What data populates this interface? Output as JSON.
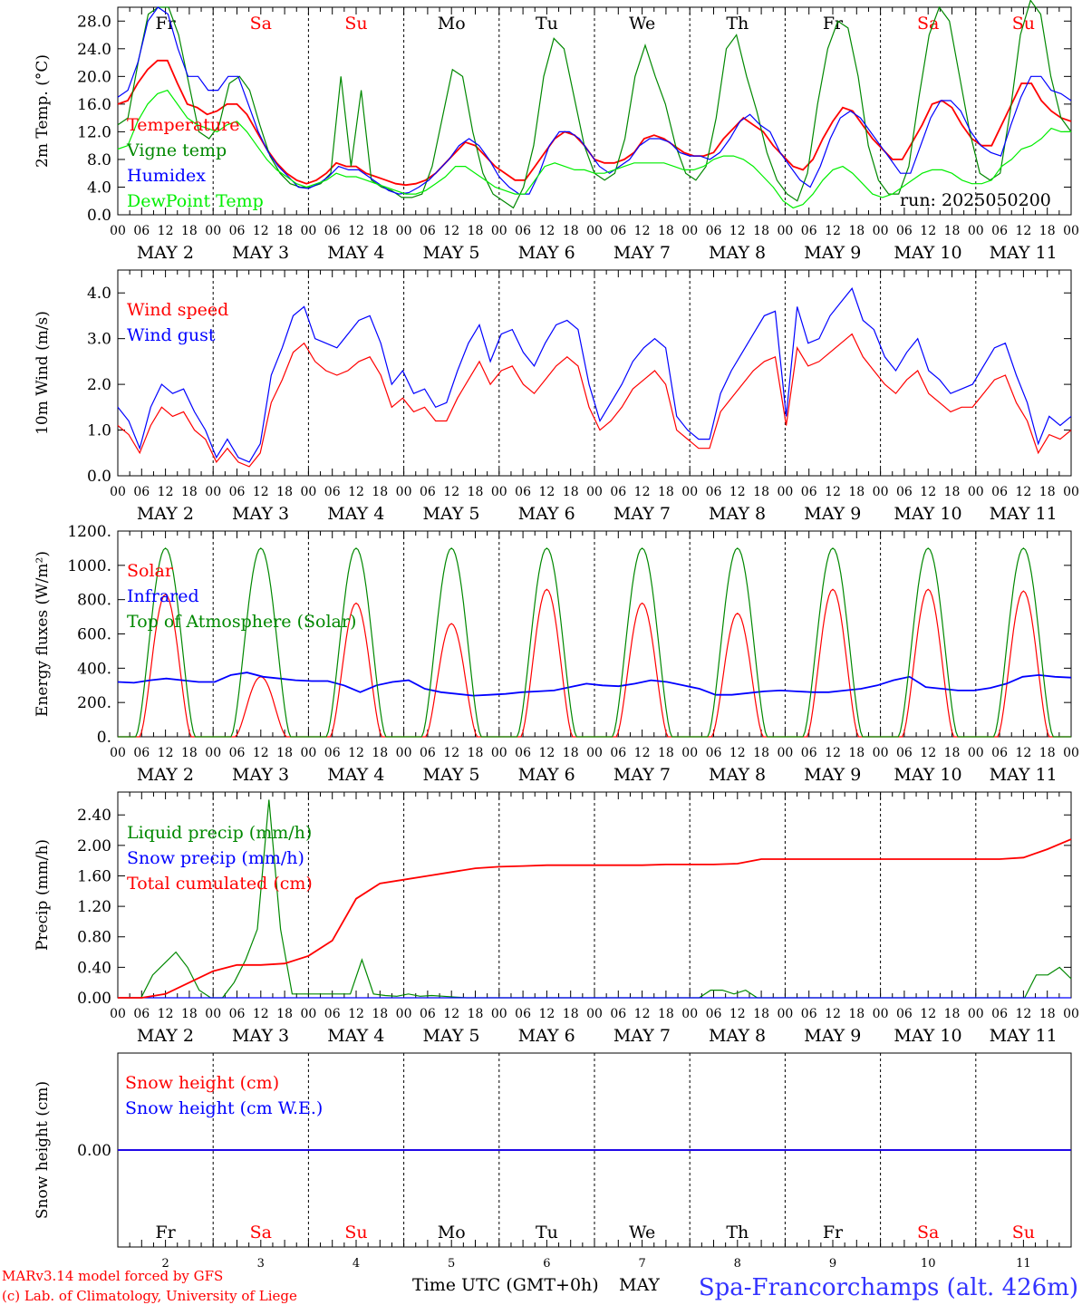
{
  "header": {
    "run": "run: 2025050200"
  },
  "footer": {
    "model": "MARv3.14 model forced by GFS",
    "credit": "(c) Lab. of Climatology, University of Liege",
    "axis_title": "Time UTC (GMT+0h)",
    "month": "MAY",
    "station": "Spa-Francorchamps (alt. 426m)"
  },
  "days": [
    "Fr",
    "Sa",
    "Su",
    "Mo",
    "Tu",
    "We",
    "Th",
    "Fr",
    "Sa",
    "Su"
  ],
  "weekend_flags": [
    false,
    true,
    true,
    false,
    false,
    false,
    false,
    false,
    true,
    true
  ],
  "date_labels": [
    "MAY  2",
    "MAY  3",
    "MAY  4",
    "MAY  5",
    "MAY  6",
    "MAY  7",
    "MAY  8",
    "MAY  9",
    "MAY 10",
    "MAY 11"
  ],
  "day_numbers": [
    "2",
    "3",
    "4",
    "5",
    "6",
    "7",
    "8",
    "9",
    "10",
    "11"
  ],
  "hour_ticks": [
    "00",
    "06",
    "12",
    "18"
  ],
  "hour_tick_last": "00",
  "colors": {
    "red": "#ff0000",
    "blue": "#0000ff",
    "green": "#008800",
    "lightgreen": "#00ee00",
    "black": "#000000"
  },
  "chart_data": [
    {
      "type": "line",
      "ylabel": "2m Temp. (°C)",
      "ylim": [
        0,
        30
      ],
      "yticks": [
        "0.0",
        "4.0",
        "8.0",
        "12.0",
        "16.0",
        "20.0",
        "24.0",
        "28.0"
      ],
      "ytick_values": [
        0,
        4,
        8,
        12,
        16,
        20,
        24,
        28
      ],
      "x_hours_step": 3,
      "series": [
        {
          "name": "Temperature",
          "color": "#ff0000",
          "values": [
            16,
            16.5,
            19,
            21,
            22.3,
            22.3,
            19,
            16,
            15.5,
            14.5,
            15,
            16,
            16,
            14.5,
            12,
            9.5,
            7.5,
            6,
            5,
            4.5,
            5,
            6,
            7.5,
            7,
            7,
            6,
            5.5,
            5,
            4.5,
            4.3,
            4.5,
            5,
            6,
            7.5,
            9,
            10.5,
            10,
            8.5,
            7,
            6,
            5,
            5,
            7,
            9,
            11,
            12,
            11.5,
            10,
            8,
            7.5,
            7.5,
            8,
            9,
            11,
            11.5,
            11,
            10,
            9,
            8.5,
            8.5,
            9,
            11,
            12.5,
            14,
            13,
            12,
            10,
            8.5,
            7,
            6.5,
            8,
            11,
            13.5,
            15.5,
            15,
            13,
            11,
            9.5,
            8,
            8,
            10.5,
            13,
            16,
            16.5,
            15.5,
            13,
            11,
            10,
            10,
            13,
            16,
            19,
            19,
            16.5,
            15,
            14,
            13.5
          ]
        },
        {
          "name": "Vigne temp",
          "color": "#008800",
          "values": [
            13,
            14,
            22,
            29,
            30,
            30,
            26,
            19,
            12,
            11,
            13,
            19,
            20,
            18,
            13,
            8.5,
            6,
            4.5,
            4,
            4,
            4.5,
            6,
            20,
            7,
            18,
            5,
            4,
            3.5,
            2.5,
            2.5,
            3,
            7,
            14,
            21,
            20,
            12,
            6,
            3,
            2,
            1,
            4,
            10,
            20,
            25.5,
            24,
            17,
            10,
            6,
            5,
            6,
            11,
            20,
            24.5,
            20,
            16,
            10,
            6,
            5,
            7,
            14,
            24,
            26,
            20,
            15,
            9,
            5,
            3,
            2,
            6,
            16,
            24,
            28,
            27,
            20,
            10,
            5,
            3,
            3,
            7,
            17,
            26,
            30,
            28,
            20,
            12,
            6,
            5,
            6,
            15,
            26,
            31,
            29,
            20,
            14,
            12
          ]
        },
        {
          "name": "Humidex",
          "color": "#0000ff",
          "values": [
            17,
            18,
            22,
            28,
            30,
            29,
            24,
            20,
            20,
            18,
            18,
            20,
            20,
            16,
            12,
            9,
            7,
            5.5,
            4,
            3.8,
            4.5,
            5.5,
            7,
            6.5,
            6.5,
            5.5,
            4.5,
            3.5,
            3,
            3.2,
            4,
            5,
            6.5,
            8,
            10,
            11,
            10,
            8,
            5.5,
            4,
            3,
            3,
            6,
            10,
            12,
            12,
            11,
            9,
            7,
            6,
            7,
            8,
            10,
            11,
            11,
            10.5,
            9,
            8.5,
            8.5,
            8,
            9,
            11,
            13.5,
            14.5,
            13,
            12,
            9,
            7,
            5,
            4,
            7,
            11,
            14,
            15,
            14,
            12,
            10,
            8,
            6,
            6,
            10,
            14,
            16.5,
            16.5,
            15,
            12,
            10,
            9,
            8.5,
            13,
            17,
            20,
            20,
            18,
            17.5,
            16.5
          ]
        },
        {
          "name": "DewPoint Temp",
          "color": "#00ee00",
          "values": [
            9.5,
            10,
            13.5,
            16,
            17.5,
            18,
            16,
            14,
            13,
            12.5,
            12,
            13,
            13.5,
            12,
            10,
            8,
            6.5,
            5.5,
            4.5,
            4,
            4.5,
            5,
            6,
            5.5,
            5.5,
            5,
            4.5,
            4,
            3.5,
            3,
            3,
            3.5,
            4.5,
            5.5,
            7,
            7,
            6,
            5,
            4,
            3.5,
            3,
            3,
            5,
            7,
            7.5,
            7,
            6.5,
            6.5,
            6,
            6,
            6.5,
            7,
            7.5,
            7.5,
            7.5,
            7.5,
            7,
            6.5,
            6.5,
            7,
            8,
            8.5,
            8.5,
            8,
            7,
            5.5,
            4,
            2,
            1,
            1.5,
            3,
            5,
            6.5,
            7,
            6,
            4.5,
            3,
            2.5,
            3,
            4,
            5,
            6,
            6.5,
            6.5,
            6,
            5,
            4.5,
            4.5,
            5,
            7,
            8,
            9.5,
            10,
            11,
            12.5,
            12,
            12
          ]
        }
      ],
      "legend": [
        "Temperature",
        "Vigne temp",
        "Humidex",
        "DewPoint Temp"
      ]
    },
    {
      "type": "line",
      "ylabel": "10m Wind (m/s)",
      "ylim": [
        0,
        4.5
      ],
      "yticks": [
        "0.0",
        "1.0",
        "2.0",
        "3.0",
        "4.0"
      ],
      "ytick_values": [
        0,
        1,
        2,
        3,
        4
      ],
      "x_hours_step": 3,
      "series": [
        {
          "name": "Wind speed",
          "color": "#ff0000",
          "values": [
            1.1,
            0.9,
            0.5,
            1.1,
            1.5,
            1.3,
            1.4,
            1,
            0.8,
            0.3,
            0.6,
            0.3,
            0.2,
            0.5,
            1.6,
            2.1,
            2.7,
            2.9,
            2.5,
            2.3,
            2.2,
            2.3,
            2.5,
            2.6,
            2.2,
            1.5,
            1.7,
            1.4,
            1.5,
            1.2,
            1.2,
            1.7,
            2.1,
            2.5,
            2,
            2.3,
            2.4,
            2,
            1.8,
            2.1,
            2.4,
            2.6,
            2.4,
            1.5,
            1,
            1.2,
            1.5,
            1.9,
            2.1,
            2.3,
            2,
            1,
            0.8,
            0.6,
            0.6,
            1.4,
            1.7,
            2,
            2.3,
            2.5,
            2.6,
            1.1,
            2.8,
            2.4,
            2.5,
            2.7,
            2.9,
            3.1,
            2.6,
            2.3,
            2,
            1.8,
            2.1,
            2.3,
            1.8,
            1.6,
            1.4,
            1.5,
            1.5,
            1.8,
            2.1,
            2.2,
            1.6,
            1.2,
            0.5,
            0.9,
            0.8,
            1
          ]
        },
        {
          "name": "Wind gust",
          "color": "#0000ff",
          "values": [
            1.5,
            1.2,
            0.6,
            1.5,
            2,
            1.8,
            1.9,
            1.4,
            1,
            0.4,
            0.8,
            0.4,
            0.3,
            0.7,
            2.2,
            2.8,
            3.5,
            3.7,
            3,
            2.9,
            2.8,
            3.1,
            3.4,
            3.5,
            2.9,
            2,
            2.3,
            1.8,
            1.9,
            1.5,
            1.6,
            2.3,
            2.9,
            3.3,
            2.5,
            3.1,
            3.2,
            2.7,
            2.4,
            2.9,
            3.3,
            3.4,
            3.2,
            2,
            1.2,
            1.6,
            2,
            2.5,
            2.8,
            3,
            2.8,
            1.3,
            1,
            0.8,
            0.8,
            1.8,
            2.3,
            2.7,
            3.1,
            3.5,
            3.6,
            1.3,
            3.7,
            2.9,
            3,
            3.5,
            3.8,
            4.1,
            3.4,
            3.2,
            2.6,
            2.3,
            2.7,
            3,
            2.3,
            2.1,
            1.8,
            1.9,
            2,
            2.4,
            2.8,
            2.9,
            2.2,
            1.6,
            0.7,
            1.3,
            1.1,
            1.3
          ]
        }
      ],
      "legend": [
        "Wind speed",
        "Wind gust"
      ]
    },
    {
      "type": "line",
      "ylabel": "Energy fluxes (W/m²)",
      "ylim": [
        0,
        1200
      ],
      "yticks": [
        "0.",
        "200.",
        "400.",
        "600.",
        "800.",
        "1000.",
        "1200."
      ],
      "ytick_values": [
        0,
        200,
        400,
        600,
        800,
        1000,
        1200
      ],
      "series": [
        {
          "name": "Solar",
          "color": "#ff0000",
          "peaks": [
            830,
            350,
            780,
            660,
            860,
            780,
            720,
            860,
            860,
            850
          ]
        },
        {
          "name": "Infrared",
          "color": "#0000ff",
          "values": [
            320,
            315,
            330,
            340,
            330,
            320,
            320,
            360,
            375,
            350,
            340,
            330,
            325,
            325,
            300,
            260,
            300,
            320,
            330,
            280,
            260,
            250,
            240,
            245,
            250,
            260,
            265,
            270,
            290,
            310,
            300,
            295,
            310,
            330,
            320,
            300,
            280,
            245,
            245,
            255,
            265,
            270,
            265,
            260,
            260,
            270,
            280,
            300,
            330,
            350,
            290,
            280,
            270,
            270,
            285,
            310,
            350,
            360,
            350,
            345
          ]
        },
        {
          "name": "Top of Atmosphere (Solar)",
          "color": "#008800",
          "peak": 1100
        }
      ],
      "legend": [
        "Solar",
        "Infrared",
        "Top of Atmosphere (Solar)"
      ]
    },
    {
      "type": "line",
      "ylabel": "Precip (mm/h)",
      "ylim": [
        0,
        2.7
      ],
      "yticks": [
        "0.00",
        "0.40",
        "0.80",
        "1.20",
        "1.60",
        "2.00",
        "2.40"
      ],
      "ytick_values": [
        0,
        0.4,
        0.8,
        1.2,
        1.6,
        2.0,
        2.4
      ],
      "series": [
        {
          "name": "Liquid precip (mm/h)",
          "color": "#008800",
          "values": [
            0,
            0,
            0,
            0.3,
            0.45,
            0.6,
            0.4,
            0.1,
            0,
            0,
            0.2,
            0.5,
            0.9,
            2.6,
            0.9,
            0.05,
            0.05,
            0.05,
            0.05,
            0.05,
            0.05,
            0.5,
            0.05,
            0.03,
            0.02,
            0.05,
            0.02,
            0.03,
            0.02,
            0.01,
            0,
            0,
            0,
            0,
            0,
            0,
            0,
            0,
            0,
            0,
            0,
            0,
            0,
            0,
            0,
            0,
            0,
            0,
            0,
            0,
            0,
            0.1,
            0.1,
            0.05,
            0.1,
            0,
            0,
            0,
            0,
            0,
            0,
            0,
            0,
            0,
            0,
            0,
            0,
            0,
            0,
            0,
            0,
            0,
            0,
            0,
            0,
            0,
            0,
            0,
            0,
            0.3,
            0.3,
            0.4,
            0.25
          ]
        },
        {
          "name": "Snow precip (mm/h)",
          "color": "#0000ff",
          "values": [
            0,
            0
          ]
        },
        {
          "name": "Total cumulated (cm)",
          "color": "#ff0000",
          "values": [
            0,
            0,
            0.05,
            0.2,
            0.35,
            0.43,
            0.43,
            0.45,
            0.55,
            0.75,
            1.3,
            1.5,
            1.55,
            1.6,
            1.65,
            1.7,
            1.72,
            1.73,
            1.74,
            1.74,
            1.74,
            1.74,
            1.74,
            1.75,
            1.75,
            1.75,
            1.76,
            1.82,
            1.82,
            1.82,
            1.82,
            1.82,
            1.82,
            1.82,
            1.82,
            1.82,
            1.82,
            1.82,
            1.84,
            1.95,
            2.08
          ]
        }
      ],
      "legend": [
        "Liquid precip (mm/h)",
        "Snow precip (mm/h)",
        "Total cumulated (cm)"
      ]
    },
    {
      "type": "line",
      "ylabel": "Snow height (cm)",
      "yticks": [
        "0.00"
      ],
      "ytick_values": [
        0
      ],
      "series": [
        {
          "name": "Snow height (cm)",
          "color": "#ff0000",
          "values": [
            0,
            0
          ]
        },
        {
          "name": "Snow height (cm W.E.)",
          "color": "#0000ff",
          "values": [
            0,
            0
          ]
        }
      ],
      "legend": [
        "Snow height (cm)",
        "Snow height (cm W.E.)"
      ]
    }
  ]
}
